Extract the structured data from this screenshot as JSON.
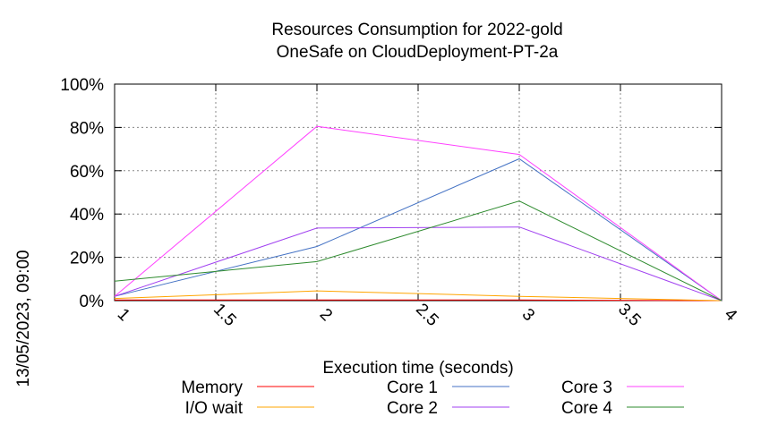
{
  "chart_data": {
    "type": "line",
    "title": "Resources Consumption for 2022-gold",
    "subtitle": "OneSafe on CloudDeployment-PT-2a",
    "xlabel": "Execution time (seconds)",
    "ylabel": "13/05/2023, 09:00",
    "xlim": [
      1,
      4
    ],
    "ylim": [
      0,
      100
    ],
    "x_ticks": [
      "1",
      "1.5",
      "2",
      "2.5",
      "3",
      "3.5",
      "4"
    ],
    "y_ticks": [
      "0%",
      "20%",
      "40%",
      "60%",
      "80%",
      "100%"
    ],
    "grid": true,
    "legend_position": "bottom",
    "x": [
      1,
      2,
      3,
      4
    ],
    "series": [
      {
        "name": "Memory",
        "color": "#ff0000",
        "values": [
          0.3,
          0.3,
          0.3,
          0
        ]
      },
      {
        "name": "I/O wait",
        "color": "#ffa500",
        "values": [
          1,
          4.5,
          2,
          0
        ]
      },
      {
        "name": "Core 1",
        "color": "#4472c4",
        "values": [
          2,
          25,
          65.5,
          0
        ]
      },
      {
        "name": "Core 2",
        "color": "#a040f0",
        "values": [
          2,
          33.5,
          34,
          0
        ]
      },
      {
        "name": "Core 3",
        "color": "#ff40ff",
        "values": [
          2,
          80.5,
          67.5,
          0
        ]
      },
      {
        "name": "Core 4",
        "color": "#2e8b2e",
        "values": [
          9,
          18,
          46,
          0
        ]
      }
    ]
  }
}
